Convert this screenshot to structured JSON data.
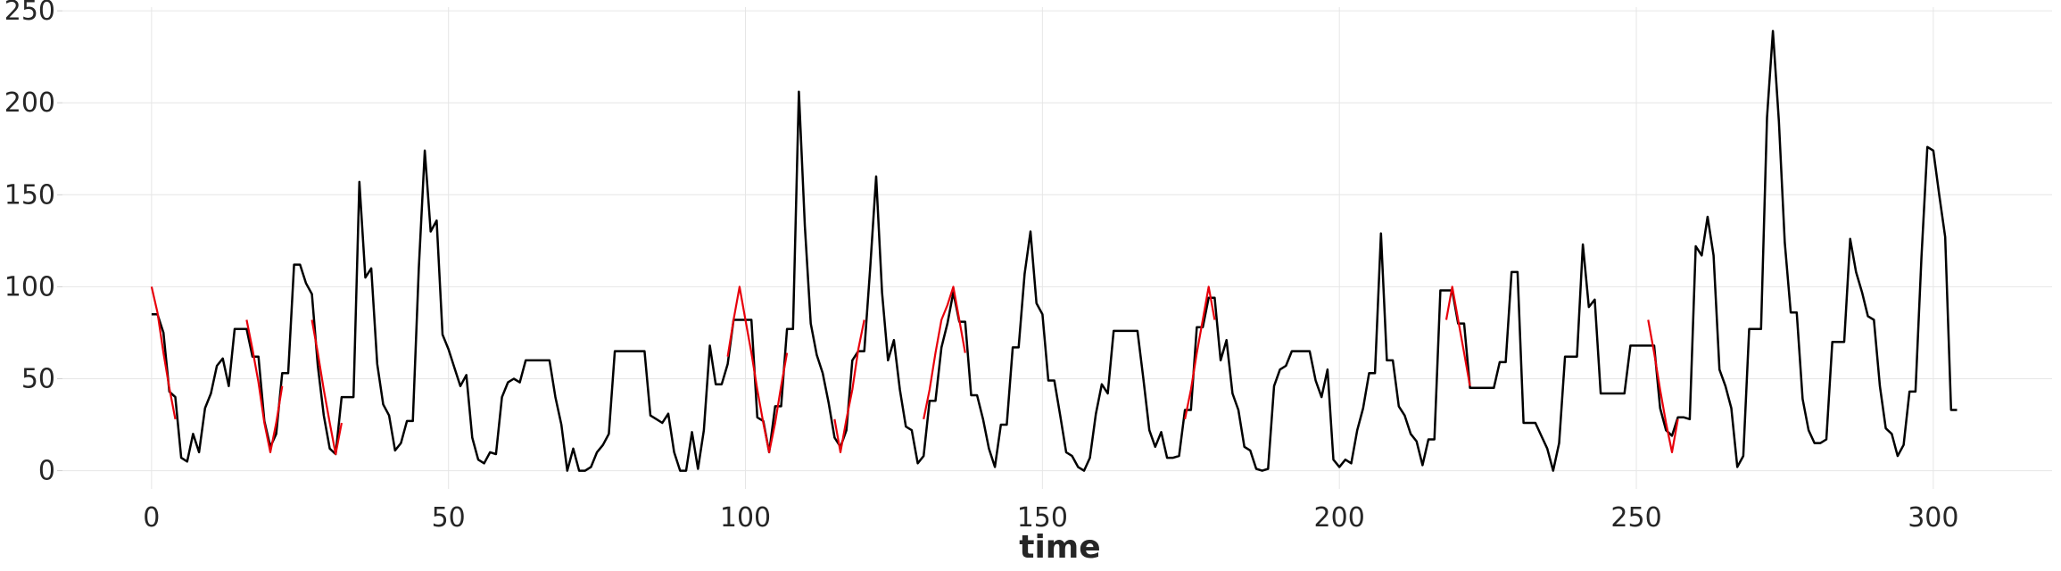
{
  "chart_data": {
    "type": "line",
    "title": "",
    "xlabel": "time",
    "ylabel": "",
    "xlim": [
      -15,
      320
    ],
    "ylim": [
      -7,
      252
    ],
    "xticks": [
      0,
      50,
      100,
      150,
      200,
      250,
      300
    ],
    "yticks": [
      0,
      50,
      100,
      150,
      200,
      250
    ],
    "grid": true,
    "colors": {
      "series": "#000000",
      "segments": "#e8000b",
      "grid": "#e6e6e6",
      "text": "#262626"
    },
    "series": [
      {
        "x": [
          0,
          1,
          2,
          3,
          4,
          5,
          6,
          7,
          8,
          9,
          10,
          11,
          12,
          13,
          14,
          15,
          16,
          17,
          18,
          19,
          20,
          21,
          22,
          23,
          24,
          25,
          26,
          27,
          28,
          29,
          30,
          31,
          32,
          33,
          34,
          35,
          36,
          37,
          38,
          39,
          40,
          41,
          42,
          43,
          44,
          45,
          46,
          47,
          48,
          49,
          50,
          51,
          52,
          53,
          54,
          55,
          56,
          57,
          58,
          59,
          60,
          61,
          62,
          63,
          64,
          65,
          66,
          67,
          68,
          69,
          70,
          71,
          72,
          73,
          74,
          75,
          76,
          77,
          78,
          79,
          80,
          81,
          82,
          83,
          84,
          85,
          86,
          87,
          88,
          89,
          90,
          91,
          92,
          93,
          94,
          95,
          96,
          97,
          98,
          99,
          100,
          101,
          102,
          103,
          104,
          105,
          106,
          107,
          108,
          109,
          110,
          111,
          112,
          113,
          114,
          115,
          116,
          117,
          118,
          119,
          120,
          121,
          122,
          123,
          124,
          125,
          126,
          127,
          128,
          129,
          130,
          131,
          132,
          133,
          134,
          135,
          136,
          137,
          138,
          139,
          140,
          141,
          142,
          143,
          144,
          145,
          146,
          147,
          148,
          149,
          150,
          151,
          152,
          153,
          154,
          155,
          156,
          157,
          158,
          159,
          160,
          161,
          162,
          163,
          164,
          165,
          166,
          167,
          168,
          169,
          170,
          171,
          172,
          173,
          174,
          175,
          176,
          177,
          178,
          179,
          180,
          181,
          182,
          183,
          184,
          185,
          186,
          187,
          188,
          189,
          190,
          191,
          192,
          193,
          194,
          195,
          196,
          197,
          198,
          199,
          200,
          201,
          202,
          203,
          204,
          205,
          206,
          207,
          208,
          209,
          210,
          211,
          212,
          213,
          214,
          215,
          216,
          217,
          218,
          219,
          220,
          221,
          222,
          223,
          224,
          225,
          226,
          227,
          228,
          229,
          230,
          231,
          232,
          233,
          234,
          235,
          236,
          237,
          238,
          239,
          240,
          241,
          242,
          243,
          244,
          245,
          246,
          247,
          248,
          249,
          250,
          251,
          252,
          253,
          254,
          255,
          256,
          257,
          258,
          259,
          260,
          261,
          262,
          263,
          264,
          265,
          266,
          267,
          268,
          269,
          270,
          271,
          272,
          273,
          274,
          275,
          276,
          277,
          278,
          279,
          280,
          281,
          282,
          283,
          284,
          285,
          286,
          287,
          288,
          289,
          290,
          291,
          292,
          293,
          294,
          295,
          296,
          297,
          298,
          299,
          300,
          301,
          302,
          303,
          304
        ],
        "y": [
          85,
          85,
          75,
          43,
          40,
          7,
          5,
          20,
          10,
          34,
          42,
          57,
          61,
          46,
          77,
          77,
          77,
          62,
          62,
          27,
          13,
          20,
          53,
          53,
          112,
          112,
          102,
          96,
          57,
          30,
          12,
          9,
          40,
          40,
          40,
          157,
          105,
          110,
          58,
          36,
          30,
          11,
          15,
          27,
          27,
          110,
          174,
          130,
          136,
          74,
          66,
          56,
          46,
          52,
          18,
          6,
          4,
          10,
          9,
          40,
          48,
          50,
          48,
          60,
          60,
          60,
          60,
          60,
          40,
          25,
          0,
          12,
          0,
          0,
          2,
          10,
          14,
          20,
          65,
          65,
          65,
          65,
          65,
          65,
          30,
          28,
          26,
          31,
          10,
          0,
          0,
          21,
          1,
          22,
          68,
          47,
          47,
          58,
          82,
          82,
          82,
          82,
          29,
          27,
          10,
          35,
          35,
          77,
          77,
          206,
          133,
          80,
          63,
          53,
          37,
          18,
          13,
          22,
          60,
          65,
          65,
          110,
          160,
          97,
          60,
          71,
          44,
          24,
          22,
          4,
          8,
          38,
          38,
          67,
          80,
          97,
          81,
          81,
          41,
          41,
          28,
          12,
          2,
          25,
          25,
          67,
          67,
          107,
          130,
          91,
          85,
          49,
          49,
          30,
          10,
          8,
          2,
          0,
          7,
          31,
          47,
          42,
          76,
          76,
          76,
          76,
          76,
          50,
          22,
          13,
          21,
          7,
          7,
          8,
          33,
          33,
          78,
          78,
          94,
          94,
          60,
          71,
          42,
          33,
          13,
          11,
          1,
          0,
          1,
          46,
          55,
          57,
          65,
          65,
          65,
          65,
          49,
          40,
          55,
          6,
          2,
          6,
          4,
          22,
          34,
          53,
          53,
          129,
          60,
          60,
          35,
          30,
          20,
          16,
          3,
          17,
          17,
          98,
          98,
          98,
          80,
          80,
          45,
          45,
          45,
          45,
          45,
          59,
          59,
          108,
          108,
          26,
          26,
          26,
          19,
          12,
          0,
          15,
          62,
          62,
          62,
          123,
          89,
          93,
          42,
          42,
          42,
          42,
          42,
          68,
          68,
          68,
          68,
          68,
          34,
          22,
          19,
          29,
          29,
          28,
          122,
          117,
          138,
          117,
          55,
          46,
          34,
          2,
          8,
          77,
          77,
          77,
          192,
          239,
          190,
          124,
          86,
          86,
          39,
          22,
          15,
          15,
          17,
          70,
          70,
          70,
          126,
          108,
          97,
          84,
          82,
          46,
          23,
          20,
          8,
          14,
          43,
          43,
          116,
          176,
          174,
          150,
          127,
          33,
          33
        ]
      }
    ],
    "segments": [
      {
        "x": [
          0,
          1,
          2,
          3,
          4
        ],
        "y": [
          100,
          86,
          64,
          45,
          28
        ]
      },
      {
        "x": [
          16,
          17,
          18,
          19,
          20,
          21,
          22
        ],
        "y": [
          82,
          66,
          48,
          26,
          10,
          26,
          46
        ]
      },
      {
        "x": [
          27,
          28,
          29,
          30,
          31,
          32
        ],
        "y": [
          82,
          64,
          44,
          26,
          9,
          26
        ]
      },
      {
        "x": [
          97,
          98,
          99,
          100,
          101,
          102,
          103,
          104,
          105,
          106,
          107
        ],
        "y": [
          62,
          82,
          100,
          82,
          64,
          44,
          26,
          10,
          26,
          46,
          64
        ]
      },
      {
        "x": [
          115,
          116,
          117,
          118,
          119,
          120
        ],
        "y": [
          28,
          10,
          28,
          44,
          66,
          82
        ]
      },
      {
        "x": [
          130,
          131,
          132,
          133,
          134,
          135,
          136,
          137
        ],
        "y": [
          28,
          44,
          64,
          82,
          90,
          100,
          82,
          64
        ]
      },
      {
        "x": [
          174,
          175,
          176,
          177,
          178,
          179
        ],
        "y": [
          28,
          44,
          64,
          82,
          100,
          82
        ]
      },
      {
        "x": [
          218,
          219,
          220,
          221,
          222
        ],
        "y": [
          82,
          100,
          82,
          64,
          46
        ]
      },
      {
        "x": [
          252,
          253,
          254,
          255,
          256,
          257
        ],
        "y": [
          82,
          64,
          44,
          26,
          10,
          28
        ]
      }
    ]
  }
}
